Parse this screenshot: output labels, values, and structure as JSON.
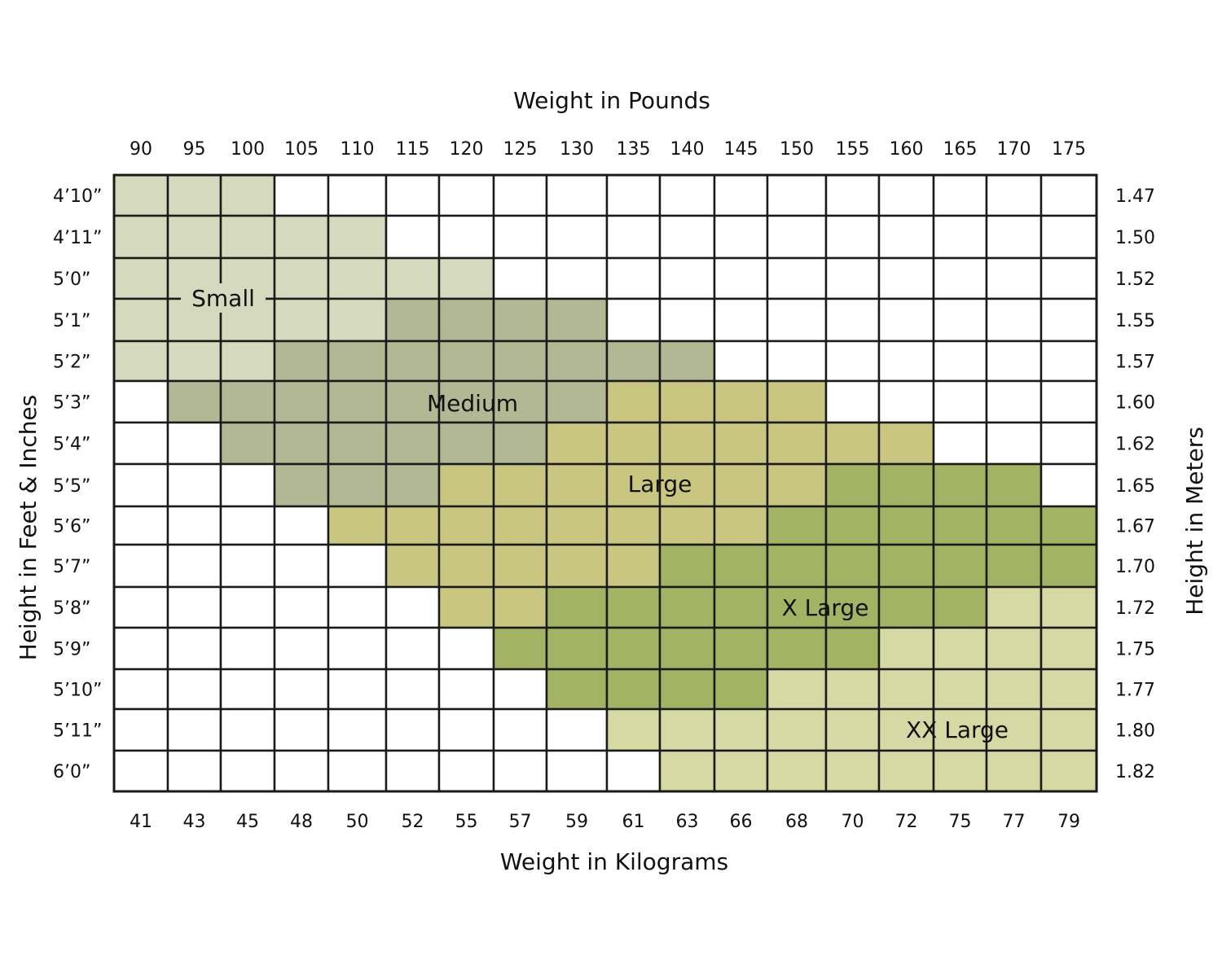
{
  "chart_data": {
    "type": "heatmap",
    "title": "",
    "top_axis_label": "Weight in Pounds",
    "bottom_axis_label": "Weight in Kilograms",
    "left_axis_label": "Height in Feet & Inches",
    "right_axis_label": "Height in Meters",
    "weights_lbs": [
      "90",
      "95",
      "100",
      "105",
      "110",
      "115",
      "120",
      "125",
      "130",
      "135",
      "140",
      "145",
      "150",
      "155",
      "160",
      "165",
      "170",
      "175"
    ],
    "weights_kg": [
      "41",
      "43",
      "45",
      "48",
      "50",
      "52",
      "55",
      "57",
      "59",
      "61",
      "63",
      "66",
      "68",
      "70",
      "72",
      "75",
      "77",
      "79"
    ],
    "heights_ft": [
      "4’10”",
      "4’11”",
      "5’0”",
      "5’1”",
      "5’2”",
      "5’3”",
      "5’4”",
      "5’5”",
      "5’6”",
      "5’7”",
      "5’8”",
      "5’9”",
      "5’10”",
      "5’11”",
      "6’0”"
    ],
    "heights_m": [
      "1.47",
      "1.50",
      "1.52",
      "1.55",
      "1.57",
      "1.60",
      "1.62",
      "1.65",
      "1.67",
      "1.70",
      "1.72",
      "1.75",
      "1.77",
      "1.80",
      "1.82"
    ],
    "sizes": [
      {
        "key": "S",
        "name": "Small",
        "color": "#d5d9bd"
      },
      {
        "key": "M",
        "name": "Medium",
        "color": "#b3b894"
      },
      {
        "key": "L",
        "name": "Large",
        "color": "#c9c682"
      },
      {
        "key": "X",
        "name": "X Large",
        "color": "#a3b364"
      },
      {
        "key": "XX",
        "name": "XX Large",
        "color": "#d6d9a3"
      }
    ],
    "empty_color": "#ffffff",
    "grid_rows": [
      "S S S - - - - - - - - - - - - - - -",
      "S S S S S - - - - - - - - - - - - -",
      "S S S S S S S - - - - - - - - - - -",
      "S S S S S M M M M - - - - - - - - -",
      "S S S M M M M M M M M - - - - - - -",
      "- M M M M M M M M L L L L - - - - -",
      "- - M M M M M M L L L L L L L - - -",
      "- - - M M M L L L L L L L X X X X -",
      "- - - - L L L L L L L L X X X X X X",
      "- - - - - L L L L L X X X X X X X X",
      "- - - - - - L L X X X X X X X X XX XX",
      "- - - - - - - X X X X X X X XX XX XX XX",
      "- - - - - - - - X X X X XX XX XX XX XX XX",
      "- - - - - - - - - XX XX XX XX XX XX XX XX XX",
      "- - - - - - - - - - XX XX XX XX XX XX XX XX"
    ]
  },
  "size_labels": {
    "small": "Small",
    "medium": "Medium",
    "large": "Large",
    "xlarge": "X Large",
    "xxlarge": "XX Large"
  }
}
